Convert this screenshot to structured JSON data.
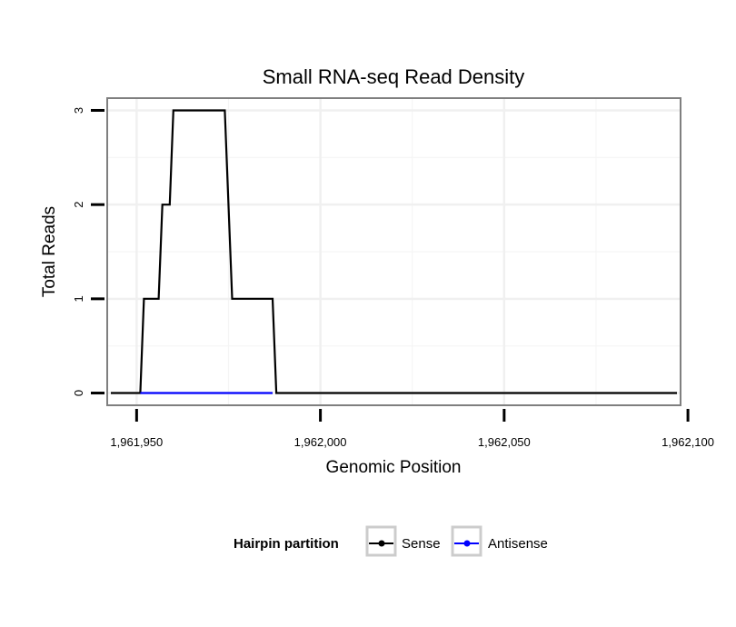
{
  "chart_data": {
    "type": "line",
    "title": "Small RNA-seq Read Density",
    "xlabel": "Genomic Position",
    "ylabel": "Total Reads",
    "xlim": [
      1961942,
      1962098
    ],
    "ylim": [
      -0.13,
      3.13
    ],
    "x_ticks": [
      1961950,
      1962000,
      1962050,
      1962100
    ],
    "x_tick_labels": [
      "1,961,950",
      "1,962,000",
      "1,962,050",
      "1,962,100"
    ],
    "y_ticks": [
      0,
      1,
      2,
      3
    ],
    "y_tick_labels": [
      "0",
      "1",
      "2",
      "3"
    ],
    "grid": true,
    "legend": {
      "title": "Hairpin partition",
      "position": "bottom",
      "entries": [
        "Sense",
        "Antisense"
      ]
    },
    "series": [
      {
        "name": "Sense",
        "color": "#000000",
        "x": [
          1961943,
          1961951,
          1961952,
          1961956,
          1961957,
          1961959,
          1961960,
          1961974,
          1961976,
          1961987,
          1961988,
          1962097
        ],
        "y": [
          0,
          0,
          1,
          1,
          2,
          2,
          3,
          3,
          1,
          1,
          0,
          0
        ]
      },
      {
        "name": "Antisense",
        "color": "#0000ff",
        "x": [
          1961951,
          1961987
        ],
        "y": [
          0,
          0
        ]
      }
    ]
  }
}
